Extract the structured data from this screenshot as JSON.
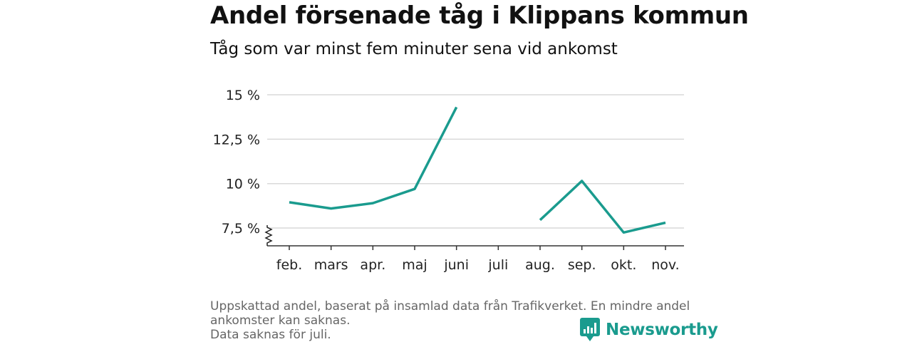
{
  "header": {
    "title": "Andel försenade tåg i Klippans kommun",
    "subtitle": "Tåg som var minst fem minuter sena vid ankomst"
  },
  "chart_data": {
    "type": "line",
    "categories": [
      "feb.",
      "mars",
      "apr.",
      "maj",
      "juni",
      "juli",
      "aug.",
      "sep.",
      "okt.",
      "nov."
    ],
    "series": [
      {
        "values": [
          8.95,
          8.6,
          8.9,
          9.7,
          14.3,
          null,
          7.95,
          10.15,
          7.25,
          7.8
        ]
      }
    ],
    "ylim": [
      6.5,
      15
    ],
    "yticks": [
      7.5,
      10,
      12.5,
      15
    ],
    "ytick_labels": [
      "7,5 %",
      "10 %",
      "12,5 %",
      "15 %"
    ],
    "axis_break": true,
    "grid": true,
    "line_color": "#1a9b8e"
  },
  "footer": {
    "note_line1": "Uppskattad andel, baserat på insamlad data från Trafikverket. En mindre andel",
    "note_line2": "ankomster kan saknas.",
    "note_line3": "Data saknas för juli.",
    "brand": "Newsworthy",
    "brand_color": "#1a9b8e"
  }
}
